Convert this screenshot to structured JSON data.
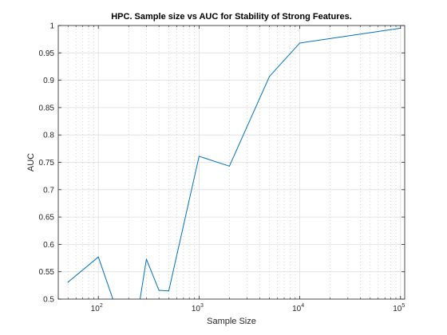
{
  "chart_data": {
    "type": "line",
    "title": "HPC. Sample size vs AUC for Stability of Strong Features.",
    "xlabel": "Sample Size",
    "ylabel": "AUC",
    "x_scale": "log",
    "xlim": [
      40,
      110000
    ],
    "ylim": [
      0.5,
      1.0
    ],
    "grid": true,
    "x_major_ticks": [
      100,
      1000,
      10000,
      100000
    ],
    "x_tick_labels": [
      {
        "base": "10",
        "exp": "2"
      },
      {
        "base": "10",
        "exp": "3"
      },
      {
        "base": "10",
        "exp": "4"
      },
      {
        "base": "10",
        "exp": "5"
      }
    ],
    "y_ticks": [
      0.5,
      0.55,
      0.6,
      0.65,
      0.7,
      0.75,
      0.8,
      0.85,
      0.9,
      0.95,
      1.0
    ],
    "y_tick_labels": [
      "0.5",
      "0.55",
      "0.6",
      "0.65",
      "0.7",
      "0.75",
      "0.8",
      "0.85",
      "0.9",
      "0.95",
      "1"
    ],
    "series": [
      {
        "color": "#0072bd",
        "x": [
          50,
          100,
          150,
          250,
          300,
          400,
          500,
          1000,
          2000,
          5000,
          10000,
          100000
        ],
        "y": [
          0.531,
          0.577,
          0.483,
          0.481,
          0.573,
          0.516,
          0.515,
          0.761,
          0.743,
          0.907,
          0.968,
          0.995
        ]
      }
    ]
  }
}
